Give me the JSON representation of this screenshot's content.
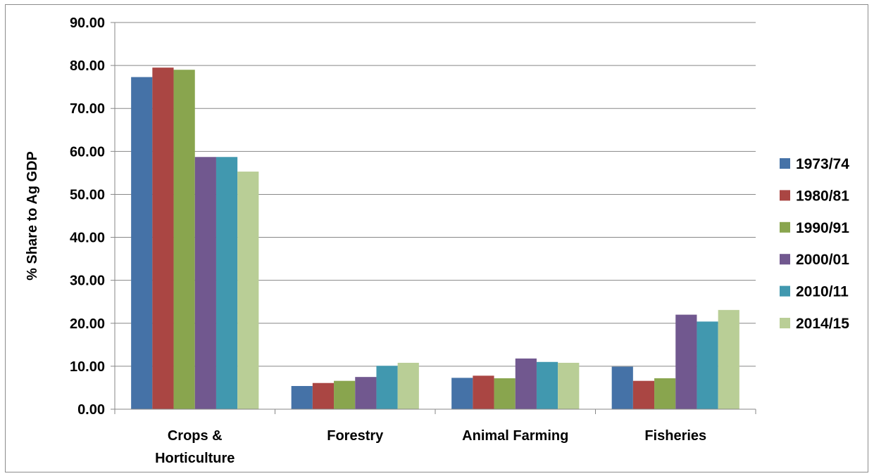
{
  "chart_data": {
    "type": "bar",
    "title": "",
    "xlabel": "",
    "ylabel": "% Share to Ag GDP",
    "ylim": [
      0,
      90
    ],
    "yticks": [
      "0.00",
      "10.00",
      "20.00",
      "30.00",
      "40.00",
      "50.00",
      "60.00",
      "70.00",
      "80.00",
      "90.00"
    ],
    "grid": true,
    "legend_position": "right",
    "categories": [
      [
        "Crops &",
        "Horticulture"
      ],
      [
        "Forestry"
      ],
      [
        "Animal Farming"
      ],
      [
        "Fisheries"
      ]
    ],
    "series": [
      {
        "name": "1973/74",
        "color": "#4572A7",
        "values": [
          77.3,
          5.4,
          7.3,
          9.9
        ]
      },
      {
        "name": "1980/81",
        "color": "#AA4643",
        "values": [
          79.5,
          6.1,
          7.8,
          6.6
        ]
      },
      {
        "name": "1990/91",
        "color": "#89A54E",
        "values": [
          79.0,
          6.6,
          7.2,
          7.2
        ]
      },
      {
        "name": "2000/01",
        "color": "#71588F",
        "values": [
          58.7,
          7.5,
          11.8,
          22.0
        ]
      },
      {
        "name": "2010/11",
        "color": "#4198AF",
        "values": [
          58.7,
          10.1,
          11.0,
          20.4
        ]
      },
      {
        "name": "2014/15",
        "color": "#B9CE96",
        "values": [
          55.3,
          10.8,
          10.8,
          23.1
        ]
      }
    ]
  }
}
